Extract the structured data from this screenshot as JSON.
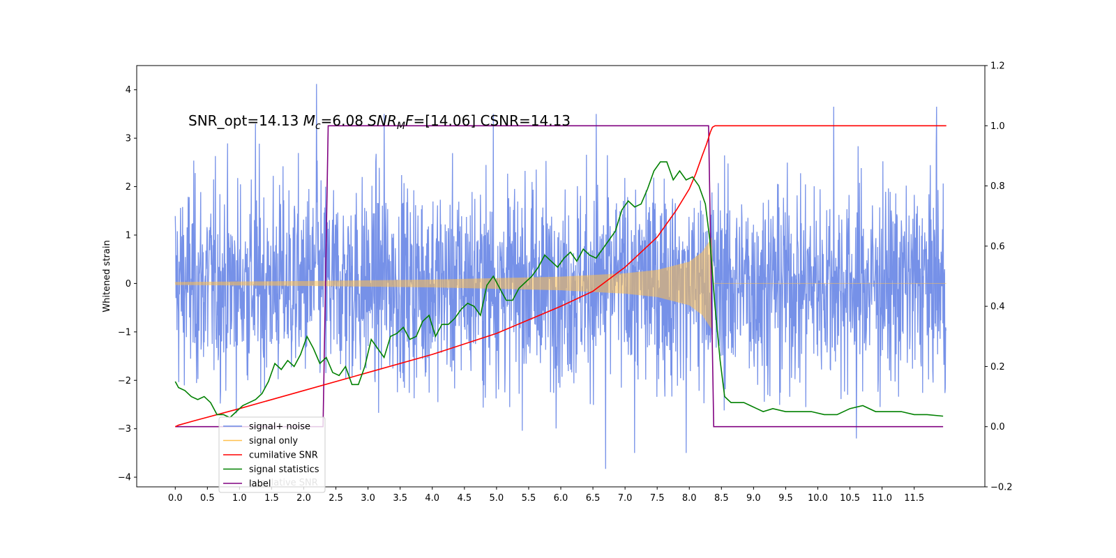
{
  "chart_data": {
    "type": "line",
    "title": "",
    "xlabel": "",
    "ylabel": "Whitened strain",
    "xlim": [
      -0.6,
      12.6
    ],
    "ylim": [
      -4.2,
      4.5
    ],
    "y2lim": [
      -0.2,
      1.2
    ],
    "x_ticks": [
      0.0,
      0.5,
      1.0,
      1.5,
      2.0,
      2.5,
      3.0,
      3.5,
      4.0,
      4.5,
      5.0,
      5.5,
      6.0,
      6.5,
      7.0,
      7.5,
      8.0,
      8.5,
      9.0,
      9.5,
      10.0,
      10.5,
      11.0,
      11.5
    ],
    "x_tick_labels": [
      "0.0",
      "0.5",
      "1.0",
      "1.5",
      "2.0",
      "2.5",
      "3.0",
      "3.5",
      "4.0",
      "4.5",
      "5.0",
      "5.5",
      "6.0",
      "6.5",
      "7.0",
      "7.5",
      "8.0",
      "8.5",
      "9.0",
      "9.5",
      "10.0",
      "10.5",
      "11.0",
      "11.5"
    ],
    "y_ticks": [
      -4,
      -3,
      -2,
      -1,
      0,
      1,
      2,
      3,
      4
    ],
    "y_tick_labels": [
      "−4",
      "−3",
      "−2",
      "−1",
      "0",
      "1",
      "2",
      "3",
      "4"
    ],
    "y2_ticks": [
      -0.2,
      0.0,
      0.2,
      0.4,
      0.6,
      0.8,
      1.0,
      1.2
    ],
    "y2_tick_labels": [
      "−0.2",
      "0.0",
      "0.2",
      "0.4",
      "0.6",
      "0.8",
      "1.0",
      "1.2"
    ],
    "annotation": {
      "part1": "SNR_opt=14.13 ",
      "mc_symbol": "M",
      "mc_sub": "c",
      "part2": "=6.08    ",
      "snr_symbol": "SNR",
      "snr_sub": "M",
      "snr_f": "F",
      "part3": "=[14.06] CSNR=14.13"
    },
    "legend": {
      "placement": "lower-left",
      "entries": [
        {
          "label": "signal+ noise",
          "color": "#6a88e6"
        },
        {
          "label": "signal only",
          "color": "#ffc04d"
        },
        {
          "label": "cumilative SNR",
          "color": "#ff0000"
        },
        {
          "label": "signal statistics",
          "color": "#008000"
        },
        {
          "label": "label",
          "color": "#800080"
        }
      ],
      "ghost_text": "cumilative SNR"
    },
    "series": [
      {
        "name": "signal+ noise",
        "axis": "left",
        "color": "#6a88e6",
        "x_range": [
          0.0,
          12.0
        ],
        "noise_std": 1.05,
        "extremes": [
          [
            2.2,
            4.12
          ],
          [
            6.7,
            -3.83
          ],
          [
            10.25,
            3.65
          ],
          [
            11.85,
            3.65
          ],
          [
            7.15,
            -3.5
          ],
          [
            7.95,
            -3.5
          ],
          [
            10.6,
            -3.2
          ],
          [
            1.25,
            3.3
          ],
          [
            3.25,
            3.5
          ],
          [
            4.95,
            3.5
          ],
          [
            6.55,
            3.5
          ]
        ]
      },
      {
        "name": "signal only",
        "axis": "left",
        "color": "#ffc04d",
        "x_range": [
          0.0,
          8.35
        ],
        "envelope": [
          [
            0.0,
            0.03
          ],
          [
            2.0,
            0.05
          ],
          [
            4.0,
            0.08
          ],
          [
            6.0,
            0.14
          ],
          [
            7.0,
            0.21
          ],
          [
            7.5,
            0.28
          ],
          [
            8.0,
            0.45
          ],
          [
            8.2,
            0.65
          ],
          [
            8.35,
            0.95
          ]
        ]
      },
      {
        "name": "cumilative SNR",
        "axis": "right",
        "color": "#ff0000",
        "x": [
          0.0,
          0.05,
          0.3,
          1.0,
          2.0,
          3.0,
          4.0,
          5.0,
          6.0,
          6.5,
          7.0,
          7.5,
          7.8,
          8.0,
          8.1,
          8.2,
          8.27,
          8.33,
          8.36,
          8.4,
          12.0
        ],
        "y": [
          0.0,
          0.005,
          0.02,
          0.06,
          0.12,
          0.18,
          0.24,
          0.31,
          0.4,
          0.45,
          0.53,
          0.63,
          0.72,
          0.79,
          0.84,
          0.9,
          0.94,
          0.98,
          0.995,
          1.0,
          1.0
        ]
      },
      {
        "name": "signal statistics",
        "axis": "right",
        "color": "#008000",
        "x": [
          0.0,
          0.05,
          0.15,
          0.25,
          0.35,
          0.45,
          0.55,
          0.65,
          0.75,
          0.85,
          0.95,
          1.05,
          1.15,
          1.25,
          1.35,
          1.45,
          1.55,
          1.65,
          1.75,
          1.85,
          1.95,
          2.05,
          2.15,
          2.25,
          2.35,
          2.45,
          2.55,
          2.65,
          2.75,
          2.85,
          2.95,
          3.05,
          3.15,
          3.25,
          3.35,
          3.45,
          3.55,
          3.65,
          3.75,
          3.85,
          3.95,
          4.05,
          4.15,
          4.25,
          4.35,
          4.45,
          4.55,
          4.65,
          4.75,
          4.85,
          4.95,
          5.05,
          5.15,
          5.25,
          5.35,
          5.45,
          5.55,
          5.65,
          5.75,
          5.85,
          5.95,
          6.05,
          6.15,
          6.25,
          6.35,
          6.45,
          6.55,
          6.65,
          6.75,
          6.85,
          6.95,
          7.05,
          7.15,
          7.25,
          7.35,
          7.45,
          7.55,
          7.65,
          7.75,
          7.85,
          7.95,
          8.05,
          8.15,
          8.25,
          8.32,
          8.4,
          8.48,
          8.55,
          8.65,
          8.75,
          8.85,
          8.95,
          9.05,
          9.15,
          9.3,
          9.5,
          9.7,
          9.9,
          10.1,
          10.3,
          10.5,
          10.7,
          10.9,
          11.1,
          11.3,
          11.5,
          11.7,
          11.95
        ],
        "y": [
          0.15,
          0.13,
          0.12,
          0.1,
          0.09,
          0.1,
          0.08,
          0.04,
          0.04,
          0.03,
          0.05,
          0.07,
          0.08,
          0.09,
          0.11,
          0.15,
          0.21,
          0.19,
          0.22,
          0.2,
          0.24,
          0.3,
          0.26,
          0.21,
          0.23,
          0.18,
          0.17,
          0.2,
          0.14,
          0.14,
          0.2,
          0.29,
          0.26,
          0.23,
          0.3,
          0.31,
          0.33,
          0.29,
          0.3,
          0.35,
          0.37,
          0.3,
          0.34,
          0.34,
          0.36,
          0.39,
          0.41,
          0.4,
          0.37,
          0.47,
          0.5,
          0.46,
          0.42,
          0.42,
          0.46,
          0.48,
          0.5,
          0.53,
          0.57,
          0.55,
          0.53,
          0.56,
          0.58,
          0.55,
          0.59,
          0.57,
          0.56,
          0.59,
          0.62,
          0.65,
          0.72,
          0.75,
          0.73,
          0.74,
          0.79,
          0.85,
          0.88,
          0.88,
          0.82,
          0.85,
          0.82,
          0.83,
          0.8,
          0.74,
          0.62,
          0.4,
          0.22,
          0.1,
          0.08,
          0.08,
          0.08,
          0.07,
          0.06,
          0.05,
          0.06,
          0.05,
          0.05,
          0.05,
          0.04,
          0.04,
          0.06,
          0.07,
          0.05,
          0.05,
          0.05,
          0.04,
          0.04,
          0.035
        ]
      },
      {
        "name": "label",
        "axis": "right",
        "color": "#800080",
        "x": [
          0.0,
          2.3,
          2.38,
          8.3,
          8.38,
          11.95
        ],
        "y": [
          0.0,
          0.0,
          1.0,
          1.0,
          0.0,
          0.0
        ]
      }
    ]
  }
}
